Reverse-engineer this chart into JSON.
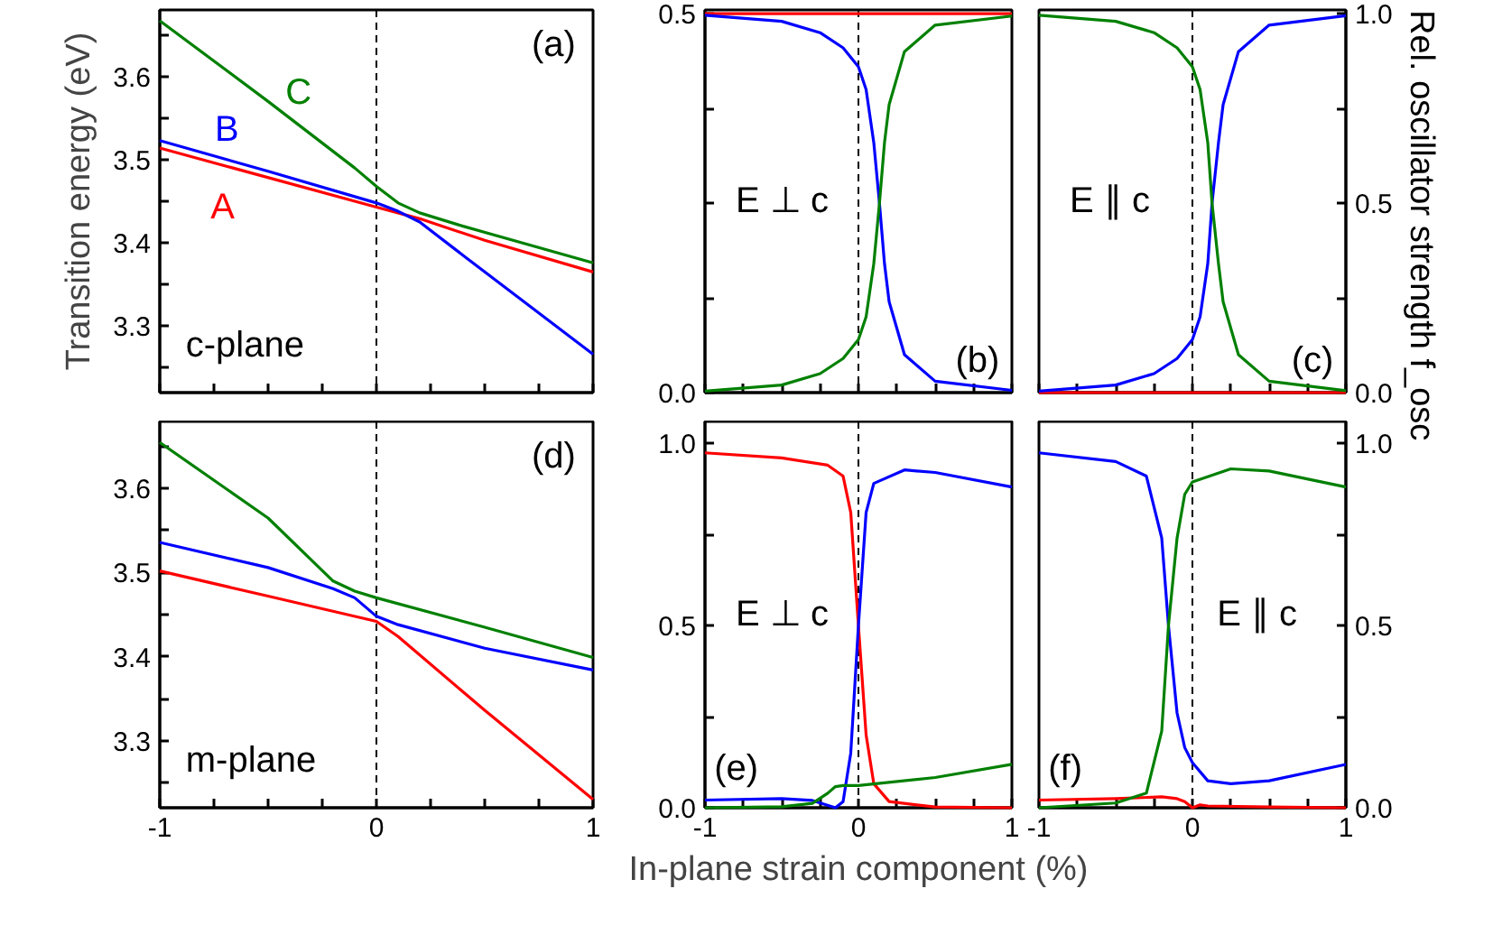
{
  "chart_data": [
    {
      "type": "line",
      "ylabel": "Transition energy (eV)",
      "annotations": [
        "(a)",
        "c-plane"
      ],
      "xlim": [
        -1,
        1
      ],
      "ylim": [
        3.22,
        3.68
      ],
      "xticks": [
        {
          "value": -1,
          "label": null
        },
        {
          "value": -0.75,
          "label": null
        },
        {
          "value": -0.5,
          "label": null
        },
        {
          "value": -0.25,
          "label": null
        },
        {
          "value": 0,
          "label": null
        },
        {
          "value": 0.25,
          "label": null
        },
        {
          "value": 0.5,
          "label": null
        },
        {
          "value": 0.75,
          "label": null
        },
        {
          "value": 1,
          "label": null
        }
      ],
      "yticks": [
        {
          "value": 3.25,
          "label": null
        },
        3.3,
        {
          "value": 3.35,
          "label": null
        },
        3.4,
        {
          "value": 3.45,
          "label": null
        },
        3.5,
        {
          "value": 3.55,
          "label": null
        },
        3.6,
        {
          "value": 3.65,
          "label": null
        }
      ],
      "tick_labels": "y",
      "grid": false,
      "legend": false,
      "ref_lines": [
        {
          "axis": "x",
          "value": 0,
          "color": "#000000",
          "line_style": "dashed"
        }
      ],
      "series": [
        {
          "name": "A",
          "color": "#ff0000",
          "x": [
            -1,
            0,
            0.2,
            0.5,
            1
          ],
          "values": [
            3.514,
            3.443,
            3.429,
            3.403,
            3.365
          ]
        },
        {
          "name": "B",
          "color": "#0000ff",
          "x": [
            -1,
            -0.5,
            0,
            0.1,
            0.2,
            0.4,
            1
          ],
          "values": [
            3.523,
            3.486,
            3.448,
            3.438,
            3.425,
            3.385,
            3.266
          ]
        },
        {
          "name": "C",
          "color": "#008000",
          "x": [
            -1,
            -0.5,
            -0.1,
            0,
            0.1,
            0.2,
            0.4,
            1
          ],
          "values": [
            3.667,
            3.57,
            3.49,
            3.468,
            3.448,
            3.436,
            3.42,
            3.376
          ]
        }
      ]
    },
    {
      "type": "line",
      "annotations": [
        "E ⊥ c",
        "(b)"
      ],
      "xlim": [
        -1,
        1
      ],
      "ylim": [
        0,
        0.505
      ],
      "xticks": [
        {
          "value": -1,
          "label": null
        },
        {
          "value": -0.75,
          "label": null
        },
        {
          "value": -0.5,
          "label": null
        },
        {
          "value": -0.25,
          "label": null
        },
        {
          "value": 0,
          "label": null
        },
        {
          "value": 0.25,
          "label": null
        },
        {
          "value": 0.5,
          "label": null
        },
        {
          "value": 0.75,
          "label": null
        },
        {
          "value": 1,
          "label": null
        }
      ],
      "yticks": [
        {
          "value": 0,
          "label": "0.0"
        },
        {
          "value": 0.125,
          "label": null
        },
        {
          "value": 0.25,
          "label": null
        },
        {
          "value": 0.375,
          "label": null
        },
        0.5
      ],
      "tick_labels": "y",
      "grid": false,
      "legend": false,
      "ref_lines": [
        {
          "axis": "x",
          "value": 0,
          "color": "#000000",
          "line_style": "dashed"
        }
      ],
      "series": [
        {
          "color": "#ff0000",
          "x": [
            -1,
            1
          ],
          "values": [
            0.5,
            0.5
          ]
        },
        {
          "color": "#0000ff",
          "x": [
            -1,
            -0.5,
            -0.25,
            -0.1,
            0,
            0.05,
            0.1,
            0.137,
            0.17,
            0.2,
            0.3,
            0.5,
            1
          ],
          "values": [
            0.498,
            0.49,
            0.475,
            0.455,
            0.43,
            0.4,
            0.33,
            0.25,
            0.17,
            0.12,
            0.05,
            0.015,
            0.003
          ]
        },
        {
          "color": "#008000",
          "x": [
            -1,
            -0.5,
            -0.25,
            -0.1,
            0,
            0.05,
            0.1,
            0.137,
            0.17,
            0.2,
            0.3,
            0.5,
            1
          ],
          "values": [
            0.002,
            0.01,
            0.025,
            0.045,
            0.07,
            0.1,
            0.17,
            0.25,
            0.33,
            0.38,
            0.45,
            0.485,
            0.497
          ]
        }
      ]
    },
    {
      "type": "line",
      "y2label": "Rel. oscillator strength f_osc",
      "annotations": [
        "E ∥ c",
        "(c)"
      ],
      "xlim": [
        -1,
        1
      ],
      "y2lim": [
        0,
        1.01
      ],
      "xticks": [
        {
          "value": -1,
          "label": null
        },
        {
          "value": -0.75,
          "label": null
        },
        {
          "value": -0.5,
          "label": null
        },
        {
          "value": -0.25,
          "label": null
        },
        {
          "value": 0,
          "label": null
        },
        {
          "value": 0.25,
          "label": null
        },
        {
          "value": 0.5,
          "label": null
        },
        {
          "value": 0.75,
          "label": null
        },
        {
          "value": 1,
          "label": null
        }
      ],
      "y2ticks": [
        {
          "value": 0,
          "label": "0.0"
        },
        {
          "value": 0.25,
          "label": null
        },
        0.5,
        {
          "value": 0.75,
          "label": null
        },
        {
          "value": 1,
          "label": "1.0"
        }
      ],
      "tick_labels": "y",
      "grid": false,
      "legend": false,
      "ref_lines": [
        {
          "axis": "x",
          "value": 0,
          "color": "#000000",
          "line_style": "dashed"
        }
      ],
      "series": [
        {
          "color": "#ff0000",
          "axis": "y2",
          "x": [
            -1,
            1
          ],
          "values": [
            0,
            0
          ]
        },
        {
          "color": "#0000ff",
          "axis": "y2",
          "x": [
            -1,
            -0.5,
            -0.25,
            -0.1,
            0,
            0.05,
            0.1,
            0.128,
            0.17,
            0.2,
            0.3,
            0.5,
            1
          ],
          "values": [
            0.004,
            0.02,
            0.05,
            0.09,
            0.14,
            0.2,
            0.34,
            0.5,
            0.66,
            0.76,
            0.9,
            0.97,
            0.995
          ]
        },
        {
          "color": "#008000",
          "axis": "y2",
          "x": [
            -1,
            -0.5,
            -0.25,
            -0.1,
            0,
            0.05,
            0.1,
            0.128,
            0.17,
            0.2,
            0.3,
            0.5,
            1
          ],
          "values": [
            0.996,
            0.98,
            0.95,
            0.91,
            0.86,
            0.8,
            0.66,
            0.5,
            0.34,
            0.24,
            0.1,
            0.03,
            0.005
          ]
        }
      ]
    },
    {
      "type": "line",
      "annotations": [
        "(d)",
        "m-plane"
      ],
      "xlim": [
        -1,
        1
      ],
      "ylim": [
        3.22,
        3.68
      ],
      "xticks": [
        -1,
        {
          "value": -0.75,
          "label": null
        },
        {
          "value": -0.5,
          "label": null
        },
        {
          "value": -0.25,
          "label": null
        },
        0,
        {
          "value": 0.25,
          "label": null
        },
        {
          "value": 0.5,
          "label": null
        },
        {
          "value": 0.75,
          "label": null
        },
        1
      ],
      "yticks": [
        {
          "value": 3.25,
          "label": null
        },
        3.3,
        {
          "value": 3.35,
          "label": null
        },
        3.4,
        {
          "value": 3.45,
          "label": null
        },
        3.5,
        {
          "value": 3.55,
          "label": null
        },
        3.6,
        {
          "value": 3.65,
          "label": null
        }
      ],
      "grid": false,
      "legend": false,
      "ref_lines": [
        {
          "axis": "x",
          "value": 0,
          "color": "#000000",
          "line_style": "dashed"
        }
      ],
      "series": [
        {
          "color": "#ff0000",
          "x": [
            -1,
            -0.5,
            0,
            0.1,
            0.5,
            1
          ],
          "values": [
            3.502,
            3.472,
            3.442,
            3.424,
            3.336,
            3.23
          ]
        },
        {
          "color": "#0000ff",
          "x": [
            -1,
            -0.5,
            -0.2,
            -0.1,
            0,
            0.1,
            0.5,
            1
          ],
          "values": [
            3.536,
            3.506,
            3.481,
            3.47,
            3.448,
            3.438,
            3.41,
            3.384
          ]
        },
        {
          "color": "#008000",
          "x": [
            -1,
            -0.5,
            -0.2,
            -0.1,
            0,
            0.5,
            1
          ],
          "values": [
            3.655,
            3.565,
            3.49,
            3.478,
            3.47,
            3.435,
            3.399
          ]
        }
      ]
    },
    {
      "type": "line",
      "xlabel": "In-plane strain component (%)",
      "annotations": [
        "E ⊥ c",
        "(e)"
      ],
      "xlim": [
        -1,
        1
      ],
      "ylim": [
        0,
        1.06
      ],
      "xticks": [
        -1,
        {
          "value": -0.75,
          "label": null
        },
        {
          "value": -0.5,
          "label": null
        },
        {
          "value": -0.25,
          "label": null
        },
        0,
        {
          "value": 0.25,
          "label": null
        },
        {
          "value": 0.5,
          "label": null
        },
        {
          "value": 0.75,
          "label": null
        },
        1
      ],
      "yticks": [
        {
          "value": 0,
          "label": "0.0"
        },
        {
          "value": 0.25,
          "label": null
        },
        0.5,
        {
          "value": 0.75,
          "label": null
        },
        {
          "value": 1,
          "label": "1.0"
        }
      ],
      "grid": false,
      "legend": false,
      "ref_lines": [
        {
          "axis": "x",
          "value": 0,
          "color": "#000000",
          "line_style": "dashed"
        }
      ],
      "series": [
        {
          "color": "#ff0000",
          "x": [
            -1,
            -0.5,
            -0.2,
            -0.1,
            -0.05,
            0,
            0.05,
            0.1,
            0.2,
            0.5,
            1
          ],
          "values": [
            0.974,
            0.96,
            0.94,
            0.91,
            0.81,
            0.5,
            0.2,
            0.066,
            0.017,
            0.002,
            0
          ]
        },
        {
          "color": "#0000ff",
          "x": [
            -1,
            -0.5,
            -0.3,
            -0.15,
            -0.1,
            -0.05,
            0,
            0.05,
            0.1,
            0.3,
            0.5,
            1
          ],
          "values": [
            0.021,
            0.025,
            0.02,
            0,
            0.017,
            0.15,
            0.5,
            0.81,
            0.89,
            0.927,
            0.92,
            0.88
          ]
        },
        {
          "color": "#008000",
          "x": [
            -1,
            -0.5,
            -0.3,
            -0.2,
            -0.15,
            -0.1,
            0,
            0.5,
            1
          ],
          "values": [
            0,
            0.003,
            0.012,
            0.04,
            0.058,
            0.061,
            0.061,
            0.083,
            0.119
          ]
        }
      ]
    },
    {
      "type": "line",
      "annotations": [
        "(f)",
        "E ∥ c"
      ],
      "xlim": [
        -1,
        1
      ],
      "y2lim": [
        0,
        1.06
      ],
      "xticks": [
        -1,
        {
          "value": -0.75,
          "label": null
        },
        {
          "value": -0.5,
          "label": null
        },
        {
          "value": -0.25,
          "label": null
        },
        0,
        {
          "value": 0.25,
          "label": null
        },
        {
          "value": 0.5,
          "label": null
        },
        {
          "value": 0.75,
          "label": null
        },
        1
      ],
      "y2ticks": [
        {
          "value": 0,
          "label": "0.0"
        },
        {
          "value": 0.25,
          "label": null
        },
        0.5,
        {
          "value": 0.75,
          "label": null
        },
        {
          "value": 1,
          "label": "1.0"
        }
      ],
      "grid": false,
      "legend": false,
      "ref_lines": [
        {
          "axis": "x",
          "value": 0,
          "color": "#000000",
          "line_style": "dashed"
        }
      ],
      "series": [
        {
          "color": "#ff0000",
          "axis": "y2",
          "x": [
            -1,
            -0.5,
            -0.2,
            -0.1,
            -0.05,
            0,
            0.05,
            0.1,
            0.5,
            1
          ],
          "values": [
            0.021,
            0.025,
            0.03,
            0.025,
            0.017,
            0,
            0.008,
            0.005,
            0.002,
            0
          ]
        },
        {
          "color": "#0000ff",
          "axis": "y2",
          "x": [
            -1,
            -0.5,
            -0.3,
            -0.2,
            -0.156,
            -0.1,
            -0.05,
            0,
            0.1,
            0.25,
            0.5,
            1
          ],
          "values": [
            0.974,
            0.95,
            0.91,
            0.74,
            0.5,
            0.26,
            0.165,
            0.124,
            0.074,
            0.066,
            0.074,
            0.119
          ]
        },
        {
          "color": "#008000",
          "axis": "y2",
          "x": [
            -1,
            -0.5,
            -0.3,
            -0.2,
            -0.156,
            -0.1,
            -0.05,
            0,
            0.25,
            0.5,
            1
          ],
          "values": [
            0,
            0.013,
            0.04,
            0.21,
            0.5,
            0.74,
            0.86,
            0.894,
            0.93,
            0.924,
            0.88
          ]
        }
      ]
    }
  ]
}
